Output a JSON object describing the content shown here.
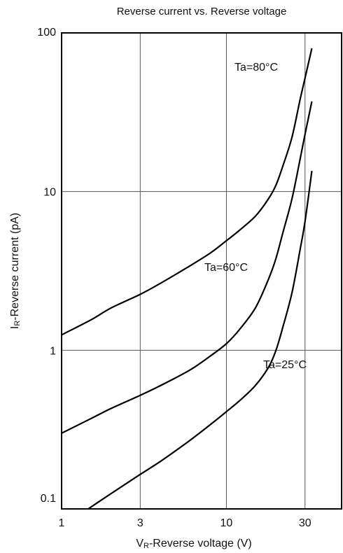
{
  "chart_data": {
    "type": "line",
    "title": "Reverse current vs. Reverse voltage",
    "xlabel": {
      "main": "V",
      "sub": "R",
      "rest": "-Reverse voltage (V)"
    },
    "ylabel": {
      "main": "I",
      "sub": "R",
      "rest": "-Reverse current (pA)"
    },
    "xscale": "log",
    "yscale": "log",
    "xlim": [
      1,
      50
    ],
    "ylim": [
      0.1,
      100
    ],
    "grid": true,
    "xticks": [
      {
        "value": 1,
        "label": "1"
      },
      {
        "value": 3,
        "label": "3"
      },
      {
        "value": 10,
        "label": "10"
      },
      {
        "value": 30,
        "label": "30"
      }
    ],
    "yticks": [
      {
        "value": 0.1,
        "label": "0.1"
      },
      {
        "value": 1,
        "label": "1"
      },
      {
        "value": 10,
        "label": "10"
      },
      {
        "value": 100,
        "label": "100"
      }
    ],
    "series": [
      {
        "name": "Ta=80°C",
        "x": [
          1,
          1.5,
          2,
          3,
          4,
          6,
          8,
          10,
          12,
          15,
          18,
          20,
          22,
          25,
          28,
          30,
          33
        ],
        "y": [
          1.25,
          1.55,
          1.85,
          2.25,
          2.65,
          3.4,
          4.1,
          4.9,
          5.7,
          7.0,
          9.0,
          11.0,
          14.5,
          22.0,
          38.0,
          52.0,
          80.0
        ]
      },
      {
        "name": "Ta=60°C",
        "x": [
          1,
          1.5,
          2,
          3,
          4,
          6,
          8,
          10,
          12,
          15,
          18,
          20,
          22,
          25,
          28,
          30,
          33
        ],
        "y": [
          0.3,
          0.37,
          0.43,
          0.52,
          0.6,
          0.75,
          0.92,
          1.1,
          1.35,
          1.85,
          2.8,
          3.8,
          5.5,
          9.0,
          16.0,
          23.0,
          37.0
        ]
      },
      {
        "name": "Ta=25°C",
        "x": [
          1.45,
          2,
          3,
          4,
          6,
          8,
          10,
          12,
          15,
          18,
          20,
          22,
          25,
          28,
          30,
          33
        ],
        "y": [
          0.1,
          0.125,
          0.165,
          0.2,
          0.27,
          0.34,
          0.41,
          0.48,
          0.6,
          0.78,
          1.0,
          1.4,
          2.3,
          4.3,
          6.5,
          13.5
        ]
      }
    ],
    "annotations": [
      {
        "text": "Ta=80°C",
        "series": 0
      },
      {
        "text": "Ta=60°C",
        "series": 1
      },
      {
        "text": "Ta=25°C",
        "series": 2
      }
    ]
  }
}
